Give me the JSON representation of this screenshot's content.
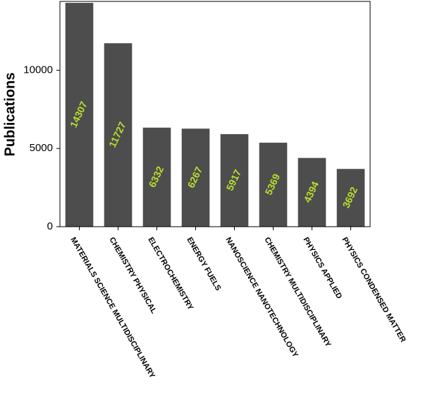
{
  "chart_data": {
    "type": "bar",
    "y_label": "Publications",
    "categories": [
      "MATERIALS SCIENCE MULTIDISCIPLINARY",
      "CHEMISTRY PHYSICAL",
      "ELECTROCHEMISTRY",
      "ENERGY FUELS",
      "NANOSCIENCE NANOTECHNOLOGY",
      "CHEMISTRY MULTIDISCIPLINARY",
      "PHYSICS APPLIED",
      "PHYSICS CONDENSED MATTER"
    ],
    "values": [
      14307,
      11727,
      6332,
      6267,
      5917,
      5369,
      4394,
      3692
    ],
    "color": "#4d4d4d",
    "value_label_color": "#b8e02a",
    "ylim": [
      0,
      14400
    ],
    "yticks": [
      0,
      5000,
      10000
    ],
    "grid": false
  }
}
